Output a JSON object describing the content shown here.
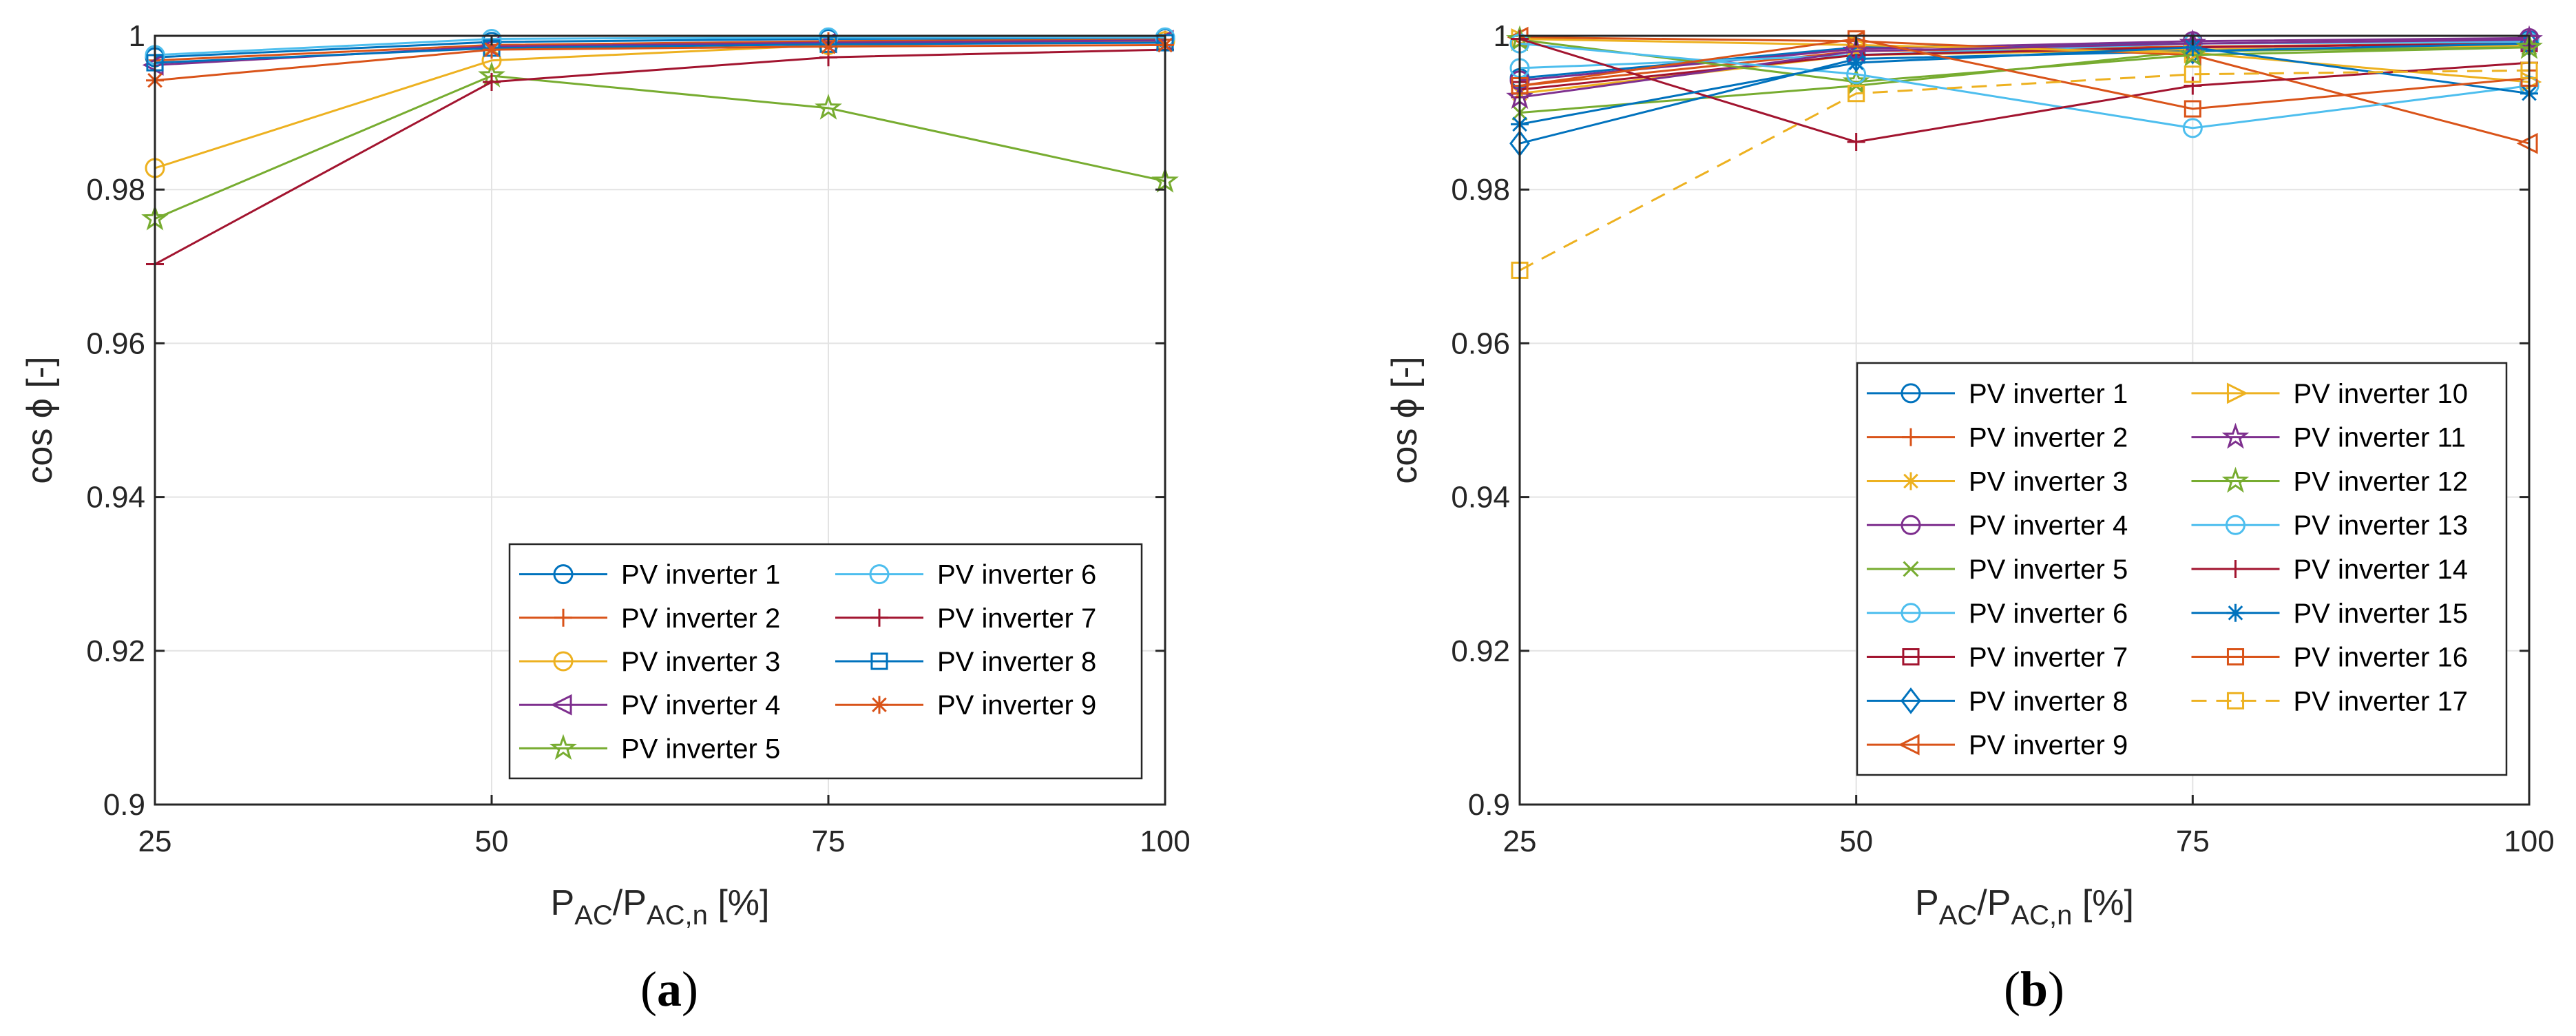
{
  "chart_data": [
    {
      "type": "line",
      "panel": "(a)",
      "xlabel": "P_AC/P_AC,n [%]",
      "xlabel_main": "P",
      "xlabel_sub1": "AC",
      "xlabel_mid": "/P",
      "xlabel_sub2": "AC,n",
      "xlabel_tail": " [%]",
      "ylabel": "cos ϕ [-]",
      "x": [
        25,
        50,
        75,
        100
      ],
      "xlim": [
        25,
        100
      ],
      "ylim": [
        0.9,
        1.0
      ],
      "xticks": [
        "25",
        "50",
        "75",
        "100"
      ],
      "yticks": [
        "0.9",
        "0.92",
        "0.94",
        "0.96",
        "0.98",
        "1"
      ],
      "grid": true,
      "legend_position": "bottom-right",
      "legend_columns": 2,
      "series": [
        {
          "name": "PV inverter 1",
          "values": [
            0.9972,
            0.9992,
            0.9996,
            0.9997
          ],
          "color": "#0072BD",
          "marker": "circle",
          "dash": false
        },
        {
          "name": "PV inverter 2",
          "values": [
            0.9968,
            0.9988,
            0.9993,
            0.9995
          ],
          "color": "#D95319",
          "marker": "plus",
          "dash": false
        },
        {
          "name": "PV inverter 3",
          "values": [
            0.9828,
            0.9968,
            0.9988,
            0.9993
          ],
          "color": "#EDB120",
          "marker": "circle",
          "dash": false
        },
        {
          "name": "PV inverter 4",
          "values": [
            0.9962,
            0.9986,
            0.9991,
            0.9994
          ],
          "color": "#7E2F8E",
          "marker": "triangle-left",
          "dash": false
        },
        {
          "name": "PV inverter 5",
          "values": [
            0.9762,
            0.9948,
            0.9906,
            0.9811
          ],
          "color": "#77AC30",
          "marker": "star",
          "dash": false
        },
        {
          "name": "PV inverter 6",
          "values": [
            0.9975,
            0.9996,
            0.9998,
            0.9998
          ],
          "color": "#4DBEEE",
          "marker": "circle",
          "dash": false
        },
        {
          "name": "PV inverter 7",
          "values": [
            0.9703,
            0.994,
            0.9972,
            0.9982
          ],
          "color": "#A2142F",
          "marker": "plus",
          "dash": false
        },
        {
          "name": "PV inverter 8",
          "values": [
            0.9965,
            0.9984,
            0.9989,
            0.9991
          ],
          "color": "#0072BD",
          "marker": "square",
          "dash": false
        },
        {
          "name": "PV inverter 9",
          "values": [
            0.9942,
            0.9982,
            0.9986,
            0.9988
          ],
          "color": "#D95319",
          "marker": "asterisk",
          "dash": false
        }
      ]
    },
    {
      "type": "line",
      "panel": "(b)",
      "xlabel": "P_AC/P_AC,n [%]",
      "xlabel_main": "P",
      "xlabel_sub1": "AC",
      "xlabel_mid": "/P",
      "xlabel_sub2": "AC,n",
      "xlabel_tail": " [%]",
      "ylabel": "cos ϕ [-]",
      "x": [
        25,
        50,
        75,
        100
      ],
      "xlim": [
        25,
        100
      ],
      "ylim": [
        0.9,
        1.0
      ],
      "xticks": [
        "25",
        "50",
        "75",
        "100"
      ],
      "yticks": [
        "0.9",
        "0.92",
        "0.94",
        "0.96",
        "0.98",
        "1"
      ],
      "grid": true,
      "legend_position": "bottom-right",
      "legend_columns": 2,
      "series": [
        {
          "name": "PV inverter 1",
          "values": [
            0.9945,
            0.9985,
            0.999,
            0.9994
          ],
          "color": "#0072BD",
          "marker": "circle",
          "dash": false
        },
        {
          "name": "PV inverter 2",
          "values": [
            0.9935,
            0.998,
            0.9986,
            0.999
          ],
          "color": "#D95319",
          "marker": "plus",
          "dash": false
        },
        {
          "name": "PV inverter 3",
          "values": [
            0.9925,
            0.9975,
            0.9982,
            0.9987
          ],
          "color": "#EDB120",
          "marker": "asterisk",
          "dash": false
        },
        {
          "name": "PV inverter 4",
          "values": [
            0.9942,
            0.9983,
            0.9993,
            0.9997
          ],
          "color": "#7E2F8E",
          "marker": "circle",
          "dash": false
        },
        {
          "name": "PV inverter 5",
          "values": [
            0.99,
            0.9935,
            0.998,
            0.9985
          ],
          "color": "#77AC30",
          "marker": "x",
          "dash": false
        },
        {
          "name": "PV inverter 6",
          "values": [
            0.9958,
            0.9975,
            0.999,
            0.9992
          ],
          "color": "#4DBEEE",
          "marker": "circle",
          "dash": false
        },
        {
          "name": "PV inverter 7",
          "values": [
            0.993,
            0.9975,
            0.9985,
            0.999
          ],
          "color": "#A2142F",
          "marker": "square",
          "dash": false
        },
        {
          "name": "PV inverter 8",
          "values": [
            0.986,
            0.997,
            0.998,
            0.999
          ],
          "color": "#0072BD",
          "marker": "diamond",
          "dash": false
        },
        {
          "name": "PV inverter 9",
          "values": [
            0.9998,
            0.9993,
            0.9975,
            0.986
          ],
          "color": "#D95319",
          "marker": "triangle-left",
          "dash": false
        },
        {
          "name": "PV inverter 10",
          "values": [
            0.9996,
            0.9988,
            0.9978,
            0.994
          ],
          "color": "#EDB120",
          "marker": "triangle-right",
          "dash": false
        },
        {
          "name": "PV inverter 11",
          "values": [
            0.992,
            0.998,
            0.999,
            0.9995
          ],
          "color": "#7E2F8E",
          "marker": "star",
          "dash": false
        },
        {
          "name": "PV inverter 12",
          "values": [
            0.9995,
            0.994,
            0.9975,
            0.9985
          ],
          "color": "#77AC30",
          "marker": "star",
          "dash": false
        },
        {
          "name": "PV inverter 13",
          "values": [
            0.999,
            0.995,
            0.988,
            0.9935
          ],
          "color": "#4DBEEE",
          "marker": "circle",
          "dash": false
        },
        {
          "name": "PV inverter 14",
          "values": [
            0.9996,
            0.9862,
            0.9935,
            0.9965
          ],
          "color": "#A2142F",
          "marker": "plus",
          "dash": false
        },
        {
          "name": "PV inverter 15",
          "values": [
            0.9885,
            0.9965,
            0.9985,
            0.9925
          ],
          "color": "#0072BD",
          "marker": "asterisk",
          "dash": false
        },
        {
          "name": "PV inverter 16",
          "values": [
            0.9935,
            0.9996,
            0.9905,
            0.9945
          ],
          "color": "#D95319",
          "marker": "square",
          "dash": false
        },
        {
          "name": "PV inverter 17",
          "values": [
            0.9695,
            0.9925,
            0.995,
            0.9955
          ],
          "color": "#EDB120",
          "marker": "square",
          "dash": true
        }
      ]
    }
  ]
}
